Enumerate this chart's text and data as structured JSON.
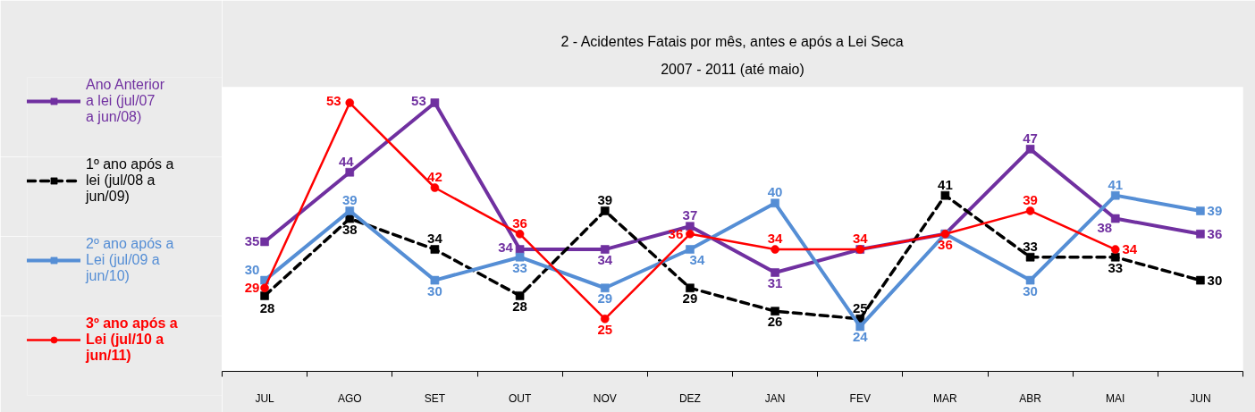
{
  "chart_data": {
    "type": "line",
    "title": "2 - Acidentes Fatais por mês, antes e após a Lei Seca",
    "subtitle": "2007 - 2011 (até maio)",
    "categories": [
      "JUL",
      "AGO",
      "SET",
      "OUT",
      "NOV",
      "DEZ",
      "JAN",
      "FEV",
      "MAR",
      "ABR",
      "MAI",
      "JUN"
    ],
    "series": [
      {
        "name": "Ano Anterior a lei (jul/07 a jun/08)",
        "color": "#7030a0",
        "marker": "square",
        "line_style": "solid",
        "values": [
          35,
          44,
          53,
          34,
          34,
          37,
          31,
          34,
          36,
          47,
          38,
          36
        ],
        "value_labels": [
          "35",
          "44",
          "53",
          "34",
          "34",
          "37",
          "31",
          null,
          null,
          "47",
          "38",
          "36"
        ]
      },
      {
        "name": "1º ano após a lei (jul/08 a jun/09)",
        "color": "#000000",
        "marker": "square",
        "line_style": "dashed",
        "values": [
          28,
          38,
          34,
          28,
          39,
          29,
          26,
          25,
          41,
          33,
          33,
          30
        ],
        "value_labels": [
          "28",
          "38",
          "34",
          "28",
          "39",
          "29",
          "26",
          "25",
          "41",
          "33",
          "33",
          "30"
        ]
      },
      {
        "name": "2º ano após a Lei (jul/09 a jun/10)",
        "color": "#558ed5",
        "marker": "square",
        "line_style": "solid",
        "values": [
          30,
          39,
          30,
          33,
          29,
          34,
          40,
          24,
          36,
          30,
          41,
          39
        ],
        "value_labels": [
          "30",
          "39",
          "30",
          "33",
          "29",
          "34",
          "40",
          "24",
          null,
          "30",
          "41",
          "39"
        ]
      },
      {
        "name": "3º ano após a Lei (jul/10 a jun/11)",
        "color": "#ff0000",
        "marker": "circle",
        "line_style": "solid",
        "values": [
          29,
          53,
          42,
          36,
          25,
          36,
          34,
          34,
          36,
          39,
          34,
          null
        ],
        "value_labels": [
          "29",
          "53",
          "42",
          "36",
          "25",
          "36",
          "34",
          "34",
          "36",
          "39",
          "34",
          null
        ]
      }
    ],
    "legend": "left",
    "grid": false
  }
}
